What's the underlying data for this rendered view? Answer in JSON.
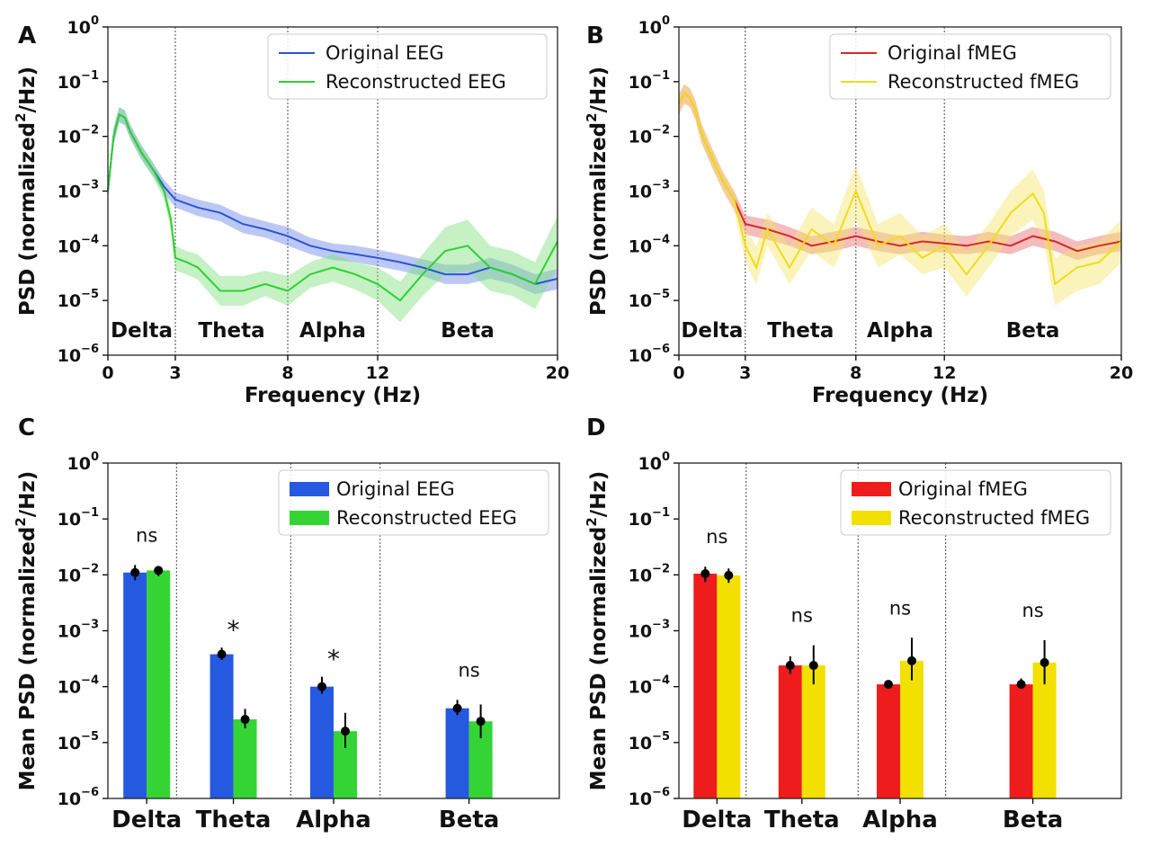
{
  "chart_data": [
    {
      "panel": "A",
      "type": "line",
      "xlabel": "Frequency (Hz)",
      "ylabel": "PSD (normalized²/Hz)",
      "ylabel_parts": [
        "PSD (normalized",
        "2",
        "/Hz)"
      ],
      "xlim": [
        0,
        20
      ],
      "ylim": [
        1e-06,
        1
      ],
      "yscale": "log",
      "x_ticks": [
        0,
        3,
        8,
        12,
        20
      ],
      "y_ticks": [
        -6,
        -5,
        -4,
        -3,
        -2,
        -1,
        0
      ],
      "band_boundaries": [
        3,
        8,
        12
      ],
      "bands": [
        {
          "label": "Delta",
          "x": 1.5
        },
        {
          "label": "Theta",
          "x": 5.5
        },
        {
          "label": "Alpha",
          "x": 10
        },
        {
          "label": "Beta",
          "x": 16
        }
      ],
      "legend_position": "top-right",
      "series": [
        {
          "name": "Original EEG",
          "color": "#2b55d6",
          "fill": "#6a85e6",
          "x": [
            0,
            0.25,
            0.5,
            0.75,
            1.0,
            1.5,
            2.0,
            2.5,
            3.0,
            4,
            5,
            6,
            7,
            8,
            9,
            10,
            11,
            12,
            13,
            14,
            15,
            16,
            17,
            18,
            19,
            20
          ],
          "y": [
            0.001,
            0.01,
            0.025,
            0.022,
            0.012,
            0.005,
            0.0025,
            0.0012,
            0.0007,
            0.0005,
            0.0004,
            0.00025,
            0.0002,
            0.00015,
            0.0001,
            8e-05,
            7e-05,
            6e-05,
            5e-05,
            4e-05,
            3e-05,
            3e-05,
            4e-05,
            3e-05,
            2e-05,
            2.5e-05
          ],
          "lo": [
            0.0007,
            0.007,
            0.018,
            0.016,
            0.009,
            0.0037,
            0.0019,
            0.0009,
            0.0005,
            0.00035,
            0.00028,
            0.00017,
            0.00014,
            0.0001,
            7e-05,
            5.5e-05,
            5e-05,
            4.2e-05,
            3.5e-05,
            2.8e-05,
            2e-05,
            2e-05,
            2.5e-05,
            2e-05,
            1.3e-05,
            1.6e-05
          ],
          "hi": [
            0.0014,
            0.014,
            0.034,
            0.03,
            0.016,
            0.0068,
            0.0033,
            0.0016,
            0.00095,
            0.0007,
            0.00056,
            0.00036,
            0.00028,
            0.00022,
            0.00014,
            0.00011,
            0.0001,
            8.5e-05,
            7e-05,
            5.7e-05,
            4.5e-05,
            4.5e-05,
            6e-05,
            4.5e-05,
            3e-05,
            3.8e-05
          ]
        },
        {
          "name": "Reconstructed EEG",
          "color": "#2fd12f",
          "fill": "#7fe07f",
          "x": [
            0,
            0.25,
            0.5,
            0.75,
            1.0,
            1.5,
            2.0,
            2.5,
            2.8,
            3.0,
            3.5,
            4,
            5,
            6,
            7,
            8,
            9,
            10,
            11,
            12,
            13,
            14,
            15,
            16,
            17,
            18,
            19,
            20
          ],
          "y": [
            0.001,
            0.01,
            0.025,
            0.022,
            0.012,
            0.005,
            0.0025,
            0.001,
            0.0003,
            6e-05,
            5e-05,
            4e-05,
            1.5e-05,
            1.5e-05,
            2e-05,
            1.5e-05,
            3e-05,
            4e-05,
            3e-05,
            2e-05,
            1e-05,
            3e-05,
            8e-05,
            0.0001,
            4e-05,
            3e-05,
            2e-05,
            0.00012
          ],
          "lo": [
            0.0007,
            0.007,
            0.018,
            0.016,
            0.009,
            0.0037,
            0.0018,
            0.0007,
            0.0002,
            3.5e-05,
            3e-05,
            2.4e-05,
            8e-06,
            8e-06,
            1.2e-05,
            8e-06,
            1.7e-05,
            2.2e-05,
            1.6e-05,
            1e-05,
            4e-06,
            1.2e-05,
            3e-05,
            3.5e-05,
            1.5e-05,
            1.2e-05,
            7e-06,
            4e-05
          ],
          "hi": [
            0.0014,
            0.014,
            0.034,
            0.03,
            0.016,
            0.0068,
            0.0034,
            0.0014,
            0.00045,
            0.0001,
            8e-05,
            7e-05,
            2.8e-05,
            2.8e-05,
            3.5e-05,
            2.8e-05,
            5e-05,
            7e-05,
            5e-05,
            4e-05,
            2.2e-05,
            7e-05,
            0.00022,
            0.0003,
            0.0001,
            8e-05,
            5e-05,
            0.00035
          ]
        }
      ]
    },
    {
      "panel": "B",
      "type": "line",
      "xlabel": "Frequency (Hz)",
      "ylabel": "PSD (normalized²/Hz)",
      "ylabel_parts": [
        "PSD (normalized",
        "2",
        "/Hz)"
      ],
      "xlim": [
        0,
        20
      ],
      "ylim": [
        1e-06,
        1
      ],
      "yscale": "log",
      "x_ticks": [
        0,
        3,
        8,
        12,
        20
      ],
      "y_ticks": [
        -6,
        -5,
        -4,
        -3,
        -2,
        -1,
        0
      ],
      "band_boundaries": [
        3,
        8,
        12
      ],
      "bands": [
        {
          "label": "Delta",
          "x": 1.5
        },
        {
          "label": "Theta",
          "x": 5.5
        },
        {
          "label": "Alpha",
          "x": 10
        },
        {
          "label": "Beta",
          "x": 16
        }
      ],
      "legend_position": "top-right",
      "series": [
        {
          "name": "Original fMEG",
          "color": "#d42a2a",
          "fill": "#e66a6a",
          "x": [
            0,
            0.25,
            0.5,
            0.75,
            1.0,
            1.5,
            2.0,
            2.5,
            3.0,
            4,
            5,
            6,
            7,
            8,
            9,
            10,
            11,
            12,
            13,
            14,
            15,
            16,
            17,
            18,
            19,
            20
          ],
          "y": [
            0.04,
            0.06,
            0.05,
            0.03,
            0.012,
            0.004,
            0.0015,
            0.0007,
            0.00025,
            0.0002,
            0.00015,
            0.0001,
            0.00012,
            0.00015,
            0.00012,
            0.0001,
            0.00012,
            0.00011,
            0.0001,
            0.00012,
            0.0001,
            0.00015,
            0.00012,
            8e-05,
            0.0001,
            0.00012
          ],
          "lo": [
            0.025,
            0.04,
            0.034,
            0.02,
            0.008,
            0.0027,
            0.001,
            0.00045,
            0.00016,
            0.00013,
            0.0001,
            7e-05,
            8e-05,
            0.0001,
            8e-05,
            7e-05,
            8e-05,
            7.5e-05,
            7e-05,
            8e-05,
            7e-05,
            0.0001,
            8e-05,
            5.5e-05,
            7e-05,
            8e-05
          ],
          "hi": [
            0.06,
            0.09,
            0.075,
            0.045,
            0.018,
            0.006,
            0.0022,
            0.001,
            0.00036,
            0.0003,
            0.00022,
            0.00015,
            0.00018,
            0.00022,
            0.00018,
            0.00015,
            0.00018,
            0.00016,
            0.00015,
            0.00018,
            0.00015,
            0.00022,
            0.00018,
            0.00012,
            0.00015,
            0.00018
          ]
        },
        {
          "name": "Reconstructed fMEG",
          "color": "#f0dd1a",
          "fill": "#f4e56a",
          "x": [
            0,
            0.25,
            0.5,
            0.75,
            1.0,
            1.5,
            2.0,
            2.5,
            3.0,
            3.5,
            4,
            5,
            6,
            7,
            8,
            9,
            10,
            11,
            12,
            13,
            14,
            15,
            16,
            16.5,
            17,
            18,
            19,
            20
          ],
          "y": [
            0.04,
            0.06,
            0.05,
            0.03,
            0.012,
            0.004,
            0.0015,
            0.0007,
            0.0001,
            4e-05,
            0.0002,
            4e-05,
            0.0002,
            0.0001,
            0.001,
            0.0001,
            0.00015,
            6e-05,
            0.0001,
            3e-05,
            0.0001,
            0.0004,
            0.0009,
            0.0004,
            2e-05,
            4e-05,
            5e-05,
            0.00012
          ],
          "lo": [
            0.025,
            0.04,
            0.034,
            0.02,
            0.008,
            0.0027,
            0.001,
            0.00045,
            5e-05,
            2e-05,
            0.0001,
            2e-05,
            8e-05,
            4e-05,
            0.0003,
            4e-05,
            7e-05,
            3e-05,
            4e-05,
            1.2e-05,
            4e-05,
            0.00015,
            0.0003,
            0.00012,
            8e-06,
            1.5e-05,
            2e-05,
            5e-05
          ],
          "hi": [
            0.06,
            0.09,
            0.075,
            0.045,
            0.018,
            0.006,
            0.0022,
            0.001,
            0.0002,
            0.0001,
            0.0004,
            0.0001,
            0.0005,
            0.00025,
            0.003,
            0.00025,
            0.0004,
            0.00015,
            0.00025,
            8e-05,
            0.00025,
            0.001,
            0.0025,
            0.001,
            6e-05,
            0.0001,
            0.00012,
            0.0003
          ]
        }
      ]
    },
    {
      "panel": "C",
      "type": "bar",
      "ylabel": "Mean PSD (normalized²/Hz)",
      "ylabel_parts": [
        "Mean PSD (normalized",
        "2",
        "/Hz)"
      ],
      "ylim": [
        1e-06,
        1
      ],
      "yscale": "log",
      "y_ticks": [
        -6,
        -5,
        -4,
        -3,
        -2,
        -1,
        0
      ],
      "categories": [
        "Delta",
        "Theta",
        "Alpha",
        "Beta"
      ],
      "legend_position": "top-right",
      "series": [
        {
          "name": "Original EEG",
          "color": "#2459e0",
          "values": [
            0.011,
            0.00038,
            0.0001,
            4.1e-05
          ],
          "err_lo": [
            0.008,
            0.0003,
            7.5e-05,
            3.1e-05
          ],
          "err_hi": [
            0.015,
            0.0005,
            0.00015,
            5.8e-05
          ]
        },
        {
          "name": "Reconstructed EEG",
          "color": "#35d435",
          "values": [
            0.012,
            2.6e-05,
            1.6e-05,
            2.4e-05
          ],
          "err_lo": [
            0.0095,
            1.8e-05,
            8e-06,
            1.2e-05
          ],
          "err_hi": [
            0.014,
            4e-05,
            3.4e-05,
            4.8e-05
          ]
        }
      ],
      "annotations": [
        "ns",
        "*",
        "*",
        "ns"
      ]
    },
    {
      "panel": "D",
      "type": "bar",
      "ylabel": "Mean PSD (normalized²/Hz)",
      "ylabel_parts": [
        "Mean PSD (normalized",
        "2",
        "/Hz)"
      ],
      "ylim": [
        1e-06,
        1
      ],
      "yscale": "log",
      "y_ticks": [
        -6,
        -5,
        -4,
        -3,
        -2,
        -1,
        0
      ],
      "categories": [
        "Delta",
        "Theta",
        "Alpha",
        "Beta"
      ],
      "legend_position": "top-right",
      "series": [
        {
          "name": "Original fMEG",
          "color": "#ee1c1c",
          "values": [
            0.0105,
            0.00024,
            0.00011,
            0.00011
          ],
          "err_lo": [
            0.0075,
            0.00017,
            0.0001,
            9.5e-05
          ],
          "err_hi": [
            0.014,
            0.00035,
            0.00013,
            0.00014
          ]
        },
        {
          "name": "Reconstructed fMEG",
          "color": "#f2e000",
          "values": [
            0.0098,
            0.00024,
            0.00029,
            0.00027
          ],
          "err_lo": [
            0.0072,
            0.00011,
            0.00013,
            0.00011
          ],
          "err_hi": [
            0.013,
            0.00055,
            0.00075,
            0.00068
          ]
        }
      ],
      "annotations": [
        "ns",
        "ns",
        "ns",
        "ns"
      ]
    }
  ]
}
